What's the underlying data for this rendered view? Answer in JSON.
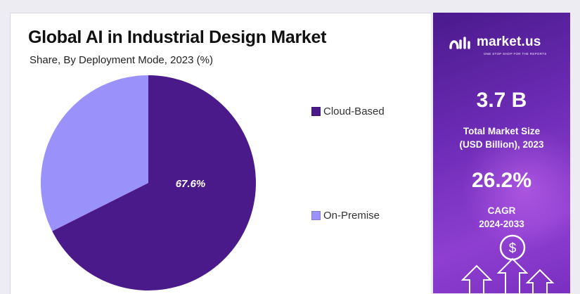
{
  "chart_data": {
    "type": "pie",
    "title": "Global AI in Industrial Design Market",
    "subtitle": "Share, By Deployment Mode, 2023 (%)",
    "slices": [
      {
        "name": "Cloud-Based",
        "value": 67.6,
        "label": "67.6%",
        "color": "#4b1a8a"
      },
      {
        "name": "On-Premise",
        "value": 32.4,
        "label": "",
        "color": "#9b91fb"
      }
    ],
    "legend_position": "right"
  },
  "sidebar": {
    "brand": "market.us",
    "tagline": "ONE STOP SHOP FOR THE REPORTS",
    "market_size_value": "3.7 B",
    "market_size_label_1": "Total Market Size",
    "market_size_label_2": "(USD Billion), 2023",
    "cagr_value": "26.2%",
    "cagr_label_1": "CAGR",
    "cagr_label_2": "2024-2033",
    "icon": "dollar-growth-arrows-icon"
  }
}
